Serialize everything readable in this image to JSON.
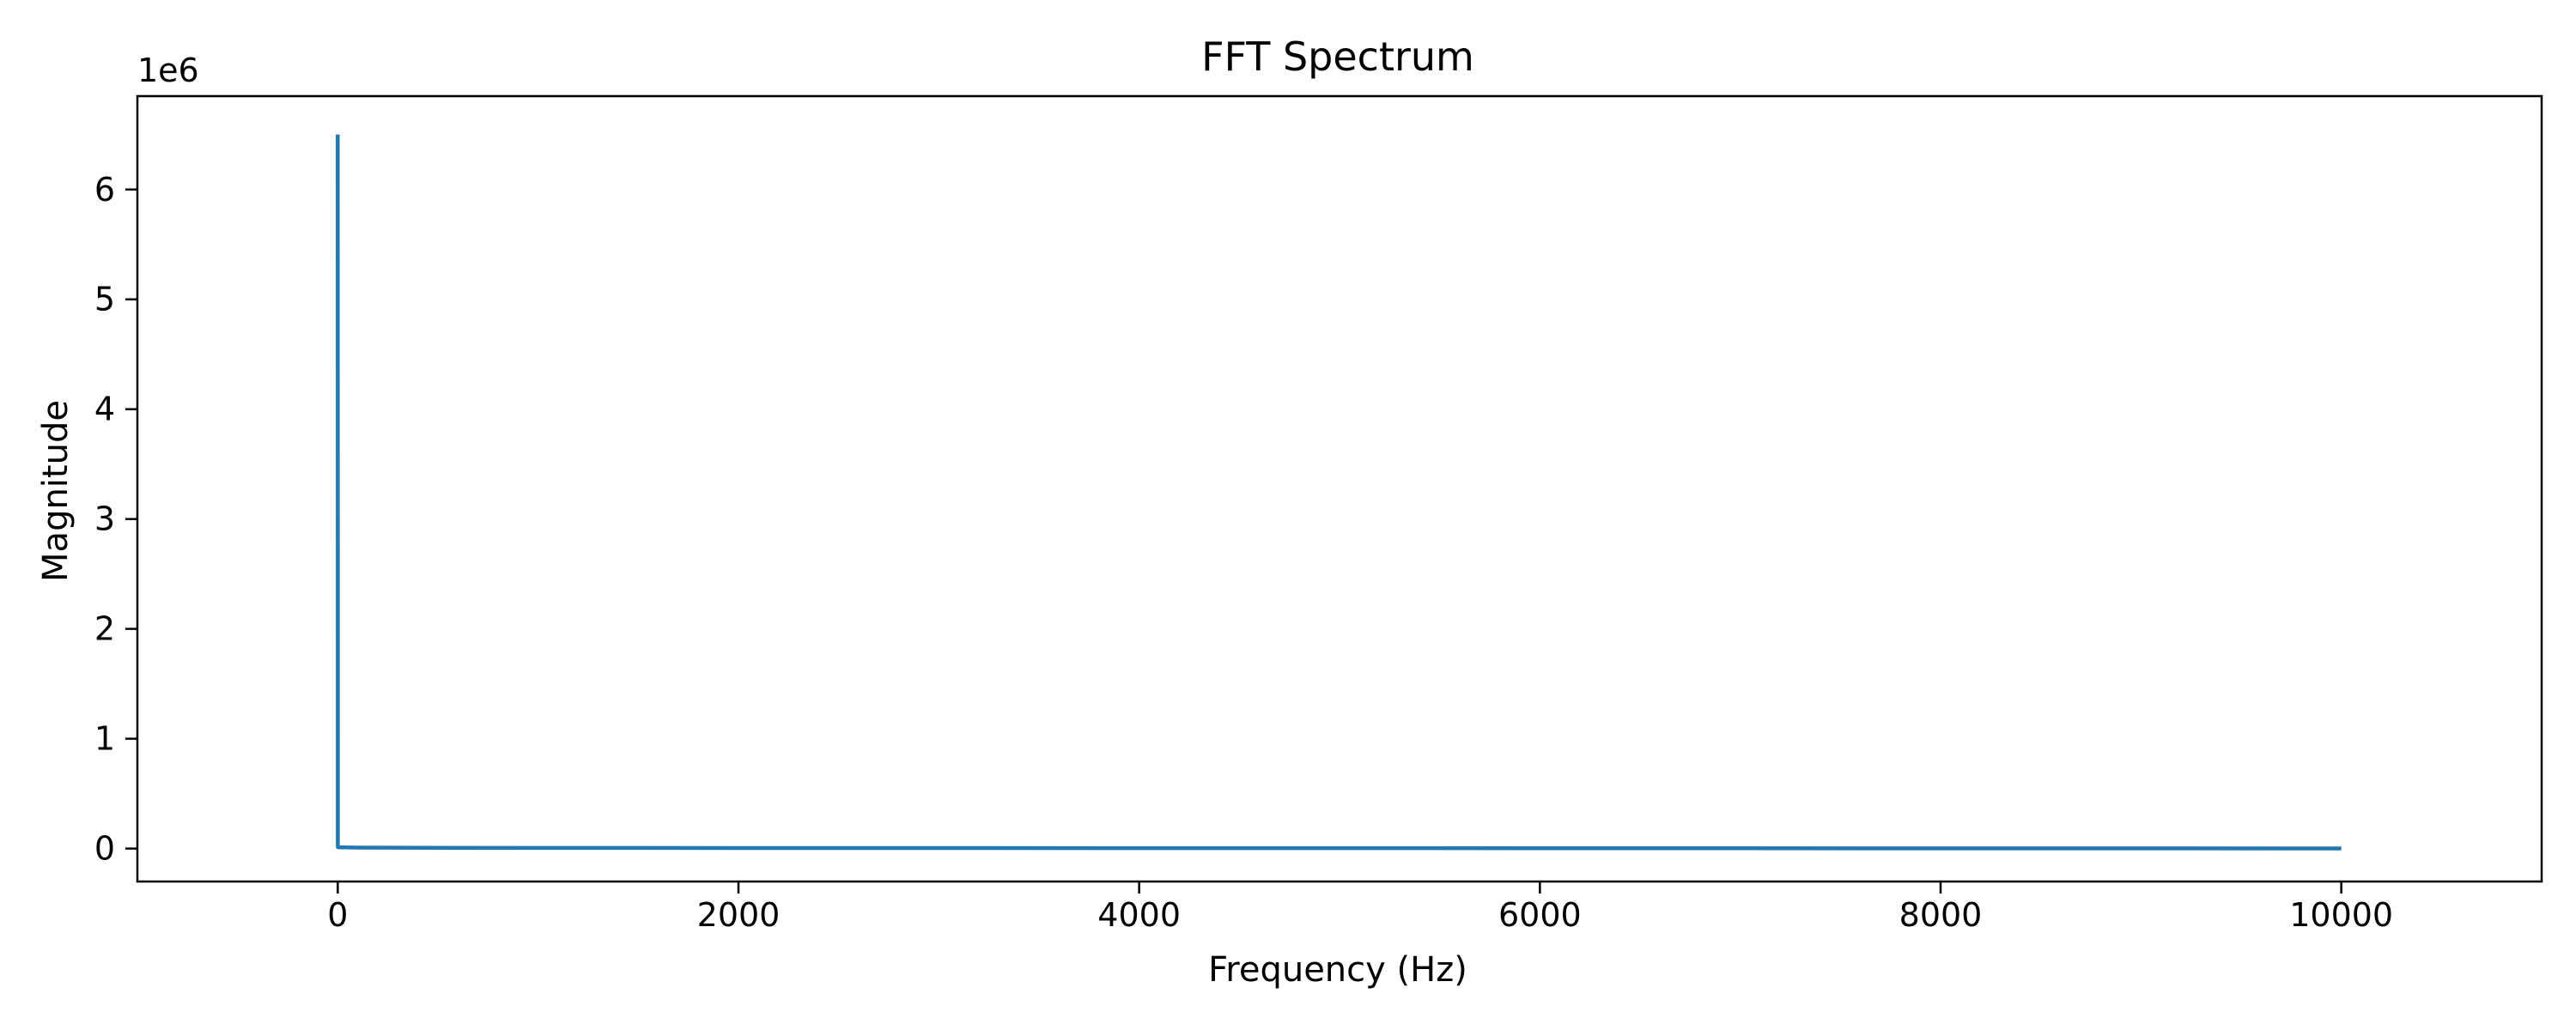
{
  "chart_data": {
    "type": "line",
    "title": "FFT Spectrum",
    "xlabel": "Frequency (Hz)",
    "ylabel": "Magnitude",
    "y_offset_label": "1e6",
    "xlim": [
      -1000,
      11000
    ],
    "ylim": [
      -300000,
      6850000
    ],
    "x_ticks": [
      0,
      2000,
      4000,
      6000,
      8000,
      10000
    ],
    "x_tick_labels": [
      "0",
      "2000",
      "4000",
      "6000",
      "8000",
      "10000"
    ],
    "y_ticks": [
      0,
      1000000,
      2000000,
      3000000,
      4000000,
      5000000,
      6000000
    ],
    "y_tick_labels": [
      "0",
      "1",
      "2",
      "3",
      "4",
      "5",
      "6"
    ],
    "grid": false,
    "legend": "none",
    "series": [
      {
        "color": "#1f77b4",
        "x": [
          0,
          0.5,
          1,
          100,
          500,
          1000,
          2000,
          3000,
          4000,
          5000,
          6000,
          7000,
          8000,
          9000,
          10000
        ],
        "values": [
          6500000,
          15000,
          12000,
          9000,
          7000,
          6000,
          5000,
          4500,
          4000,
          3500,
          3000,
          2500,
          2000,
          1500,
          1000
        ]
      }
    ]
  }
}
